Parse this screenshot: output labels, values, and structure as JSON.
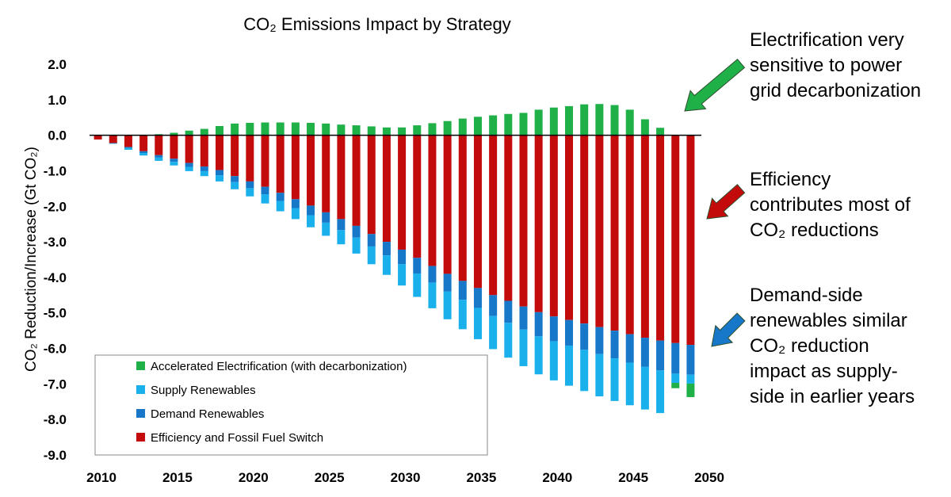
{
  "chart_data": {
    "type": "bar",
    "stacked": true,
    "title": "CO₂ Emissions Impact by Strategy",
    "ylabel": "CO₂ Reduction/Increase (Gt CO₂)",
    "xlabel": "",
    "ylim": [
      -9,
      2
    ],
    "yticks": [
      "2.0",
      "1.0",
      "0.0",
      "-1.0",
      "-2.0",
      "-3.0",
      "-4.0",
      "-5.0",
      "-6.0",
      "-7.0",
      "-8.0",
      "-9.0"
    ],
    "xticks": [
      "2010",
      "2015",
      "2020",
      "2025",
      "2030",
      "2035",
      "2040",
      "2045",
      "2050"
    ],
    "legend_position": "bottom-left",
    "categories": [
      2011,
      2012,
      2013,
      2014,
      2015,
      2016,
      2017,
      2018,
      2019,
      2020,
      2021,
      2022,
      2023,
      2024,
      2025,
      2026,
      2027,
      2028,
      2029,
      2030,
      2031,
      2032,
      2033,
      2034,
      2035,
      2036,
      2037,
      2038,
      2039,
      2040,
      2041,
      2042,
      2043,
      2044,
      2045,
      2046,
      2047,
      2048,
      2049,
      2050
    ],
    "series": [
      {
        "name": "Accelerated Electrification (with decarbonization)",
        "color": "#1fb048",
        "values": [
          0,
          0,
          0,
          0,
          0.03,
          0.07,
          0.13,
          0.18,
          0.26,
          0.33,
          0.35,
          0.36,
          0.36,
          0.36,
          0.35,
          0.33,
          0.3,
          0.28,
          0.25,
          0.22,
          0.22,
          0.28,
          0.34,
          0.4,
          0.47,
          0.52,
          0.56,
          0.6,
          0.63,
          0.72,
          0.78,
          0.82,
          0.87,
          0.88,
          0.85,
          0.72,
          0.45,
          0.21,
          -0.15,
          -0.38
        ]
      },
      {
        "name": "Supply Renewables",
        "color": "#19b0ec",
        "values": [
          0,
          -0.02,
          -0.05,
          -0.07,
          -0.09,
          -0.1,
          -0.12,
          -0.14,
          -0.17,
          -0.2,
          -0.23,
          -0.26,
          -0.29,
          -0.31,
          -0.34,
          -0.37,
          -0.4,
          -0.45,
          -0.5,
          -0.55,
          -0.6,
          -0.66,
          -0.72,
          -0.78,
          -0.83,
          -0.88,
          -0.93,
          -0.98,
          -1.03,
          -1.07,
          -1.1,
          -1.13,
          -1.16,
          -1.19,
          -1.2,
          -1.2,
          -1.2,
          -1.2,
          -0.26,
          -0.25
        ]
      },
      {
        "name": "Demand Renewables",
        "color": "#1777c8",
        "values": [
          0,
          0,
          -0.03,
          -0.05,
          -0.07,
          -0.09,
          -0.11,
          -0.13,
          -0.15,
          -0.17,
          -0.19,
          -0.21,
          -0.23,
          -0.25,
          -0.27,
          -0.29,
          -0.31,
          -0.33,
          -0.35,
          -0.38,
          -0.41,
          -0.44,
          -0.47,
          -0.5,
          -0.53,
          -0.56,
          -0.59,
          -0.62,
          -0.65,
          -0.68,
          -0.7,
          -0.72,
          -0.74,
          -0.76,
          -0.78,
          -0.8,
          -0.82,
          -0.84,
          -0.86,
          -0.84
        ]
      },
      {
        "name": "Efficiency and Fossil Fuel Switch",
        "color": "#c30b0b",
        "values": [
          -0.12,
          -0.22,
          -0.33,
          -0.45,
          -0.56,
          -0.66,
          -0.78,
          -0.88,
          -0.98,
          -1.15,
          -1.3,
          -1.45,
          -1.62,
          -1.8,
          -1.98,
          -2.17,
          -2.36,
          -2.55,
          -2.78,
          -3.0,
          -3.22,
          -3.45,
          -3.68,
          -3.9,
          -4.1,
          -4.3,
          -4.5,
          -4.66,
          -4.82,
          -4.98,
          -5.1,
          -5.2,
          -5.3,
          -5.4,
          -5.5,
          -5.6,
          -5.7,
          -5.78,
          -5.85,
          -5.9
        ]
      }
    ]
  },
  "annotations": [
    {
      "text": "Electrification very\nsensitive to power\ngrid decarbonization",
      "arrow_color": "#1fb048"
    },
    {
      "text": "Efficiency\ncontributes most of\nCO₂ reductions",
      "arrow_color": "#c30b0b"
    },
    {
      "text": "Demand-side\nrenewables similar\nCO₂ reduction\nimpact as supply-\nside in earlier years",
      "arrow_color": "#1777c8"
    }
  ]
}
